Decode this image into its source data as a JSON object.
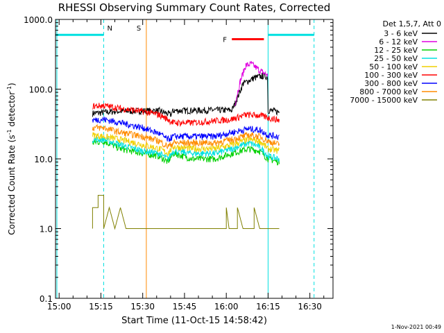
{
  "chart_data": {
    "type": "line",
    "title": "RHESSI Observing Summary Count Rates, Corrected",
    "xlabel": "Start Time (11-Oct-15 14:58:42)",
    "ylabel_main": "Corrected Count Rate (s",
    "ylabel_sup": "-1",
    "ylabel_end": " detector",
    "ylabel_end_sup": "-1",
    "ylabel_close": ")",
    "y_scale": "log",
    "ylim": [
      0.1,
      1000
    ],
    "xlim_minutes": [
      -1.3,
      98.3
    ],
    "x_ticks": [
      {
        "m": 0,
        "label": "15:00"
      },
      {
        "m": 15,
        "label": "15:15"
      },
      {
        "m": 30,
        "label": "15:30"
      },
      {
        "m": 45,
        "label": "15:45"
      },
      {
        "m": 60,
        "label": "16:00"
      },
      {
        "m": 75,
        "label": "16:15"
      },
      {
        "m": 90,
        "label": "16:30"
      }
    ],
    "y_ticks": [
      {
        "v": 0.1,
        "label": "0.1"
      },
      {
        "v": 1,
        "label": "1.0"
      },
      {
        "v": 10,
        "label": "10.0"
      },
      {
        "v": 100,
        "label": "100.0"
      },
      {
        "v": 1000,
        "label": "1000.0"
      }
    ],
    "legend_header": "Det 1,5,7, Att 0",
    "series": [
      {
        "name": "3 - 6 keV",
        "color": "#000000",
        "points": [
          [
            12,
            45
          ],
          [
            20,
            48
          ],
          [
            30,
            49
          ],
          [
            36,
            49
          ],
          [
            40,
            43
          ],
          [
            41,
            49
          ],
          [
            55,
            50
          ],
          [
            62,
            50
          ],
          [
            63,
            60
          ],
          [
            66,
            120
          ],
          [
            70,
            145
          ],
          [
            73,
            155
          ],
          [
            74.8,
            150
          ],
          [
            75,
            50
          ],
          [
            79,
            47
          ]
        ]
      },
      {
        "name": "6 - 12 keV",
        "color": "#e000e0",
        "points": [
          [
            63,
            60
          ],
          [
            65,
            130
          ],
          [
            67,
            220
          ],
          [
            69,
            230
          ],
          [
            71,
            200
          ],
          [
            73,
            175
          ],
          [
            74.8,
            160
          ]
        ]
      },
      {
        "name": "12 - 25 keV",
        "color": "#00d000",
        "points": [
          [
            12,
            17
          ],
          [
            16,
            18
          ],
          [
            22,
            14
          ],
          [
            30,
            12
          ],
          [
            36,
            11
          ],
          [
            39,
            9
          ],
          [
            41,
            12
          ],
          [
            48,
            10
          ],
          [
            56,
            10
          ],
          [
            62,
            12
          ],
          [
            68,
            14
          ],
          [
            72,
            13
          ],
          [
            75,
            10
          ],
          [
            79,
            9
          ]
        ]
      },
      {
        "name": "25 - 50 keV",
        "color": "#00e0e0",
        "points": [
          [
            12,
            19
          ],
          [
            16,
            19
          ],
          [
            22,
            16
          ],
          [
            30,
            13
          ],
          [
            36,
            12
          ],
          [
            39,
            10
          ],
          [
            41,
            13
          ],
          [
            48,
            12
          ],
          [
            56,
            12
          ],
          [
            62,
            14
          ],
          [
            68,
            17
          ],
          [
            72,
            15
          ],
          [
            75,
            11
          ],
          [
            79,
            10
          ]
        ]
      },
      {
        "name": "50 - 100 keV",
        "color": "#f0d000",
        "points": [
          [
            12,
            22
          ],
          [
            16,
            21
          ],
          [
            22,
            19
          ],
          [
            30,
            16
          ],
          [
            36,
            14
          ],
          [
            39,
            12
          ],
          [
            41,
            15
          ],
          [
            48,
            14
          ],
          [
            56,
            14
          ],
          [
            62,
            16
          ],
          [
            68,
            19
          ],
          [
            72,
            18
          ],
          [
            75,
            14
          ],
          [
            79,
            13
          ]
        ]
      },
      {
        "name": "100 - 300 keV",
        "color": "#ff0000",
        "points": [
          [
            12,
            57
          ],
          [
            16,
            58
          ],
          [
            22,
            53
          ],
          [
            30,
            48
          ],
          [
            36,
            43
          ],
          [
            39,
            37
          ],
          [
            41,
            33
          ],
          [
            48,
            33
          ],
          [
            55,
            35
          ],
          [
            62,
            37
          ],
          [
            67,
            43
          ],
          [
            72,
            42
          ],
          [
            75,
            39
          ],
          [
            79,
            36
          ]
        ]
      },
      {
        "name": "300 - 800 keV",
        "color": "#0000ff",
        "points": [
          [
            12,
            36
          ],
          [
            16,
            37
          ],
          [
            22,
            33
          ],
          [
            30,
            28
          ],
          [
            36,
            23
          ],
          [
            39,
            19
          ],
          [
            41,
            21
          ],
          [
            48,
            21
          ],
          [
            56,
            21
          ],
          [
            62,
            24
          ],
          [
            68,
            27
          ],
          [
            72,
            26
          ],
          [
            75,
            22
          ],
          [
            79,
            21
          ]
        ]
      },
      {
        "name": "800 - 7000 keV",
        "color": "#ff8c00",
        "points": [
          [
            12,
            28
          ],
          [
            16,
            28
          ],
          [
            22,
            24
          ],
          [
            30,
            21
          ],
          [
            36,
            18
          ],
          [
            39,
            15
          ],
          [
            41,
            17
          ],
          [
            48,
            17
          ],
          [
            56,
            17
          ],
          [
            62,
            19
          ],
          [
            68,
            22
          ],
          [
            72,
            21
          ],
          [
            75,
            18
          ],
          [
            79,
            16
          ]
        ]
      },
      {
        "name": "7000 - 15000 keV",
        "color": "#808000",
        "points": [
          [
            12,
            1.0
          ],
          [
            12,
            2.0
          ],
          [
            14,
            2.0
          ],
          [
            14,
            3.0
          ],
          [
            16,
            3.0
          ],
          [
            16,
            1.0
          ],
          [
            18,
            2.0
          ],
          [
            20,
            1.0
          ],
          [
            22,
            2.0
          ],
          [
            24,
            1.0
          ],
          [
            26,
            1.0
          ],
          [
            30,
            1.0
          ],
          [
            36,
            1.0
          ],
          [
            48,
            1.0
          ],
          [
            56,
            1.0
          ],
          [
            60,
            1.0
          ],
          [
            60,
            2.0
          ],
          [
            61,
            1.0
          ],
          [
            64,
            1.0
          ],
          [
            64,
            2.0
          ],
          [
            66,
            1.0
          ],
          [
            70,
            1.0
          ],
          [
            70,
            2.0
          ],
          [
            72,
            1.0
          ],
          [
            76,
            1.0
          ],
          [
            79,
            1.0
          ]
        ]
      }
    ],
    "vertical_lines": [
      {
        "m": 31.3,
        "color": "#ff8c00",
        "label": "S",
        "style": "solid"
      },
      {
        "m": 75,
        "color": "#00e0e0",
        "label": "",
        "style": "solid"
      },
      {
        "m": -0.8,
        "color": "#00e0e0",
        "label": "",
        "style": "solid"
      },
      {
        "m": 16,
        "color": "#00e0e0",
        "label": "N",
        "style": "dashed"
      },
      {
        "m": 91.5,
        "color": "#00e0e0",
        "label": "",
        "style": "dashed"
      }
    ],
    "night_bars": [
      {
        "from": -1.3,
        "to": 16,
        "value": 600,
        "color": "#00e0e0"
      },
      {
        "from": 75,
        "to": 91.5,
        "value": 600,
        "color": "#00e0e0"
      }
    ],
    "flare_bar": {
      "label": "F",
      "from": 62,
      "to": 73.5,
      "value": 520,
      "color": "#ff0000"
    }
  },
  "footer": {
    "timestamp": "1-Nov-2021 00:49"
  }
}
